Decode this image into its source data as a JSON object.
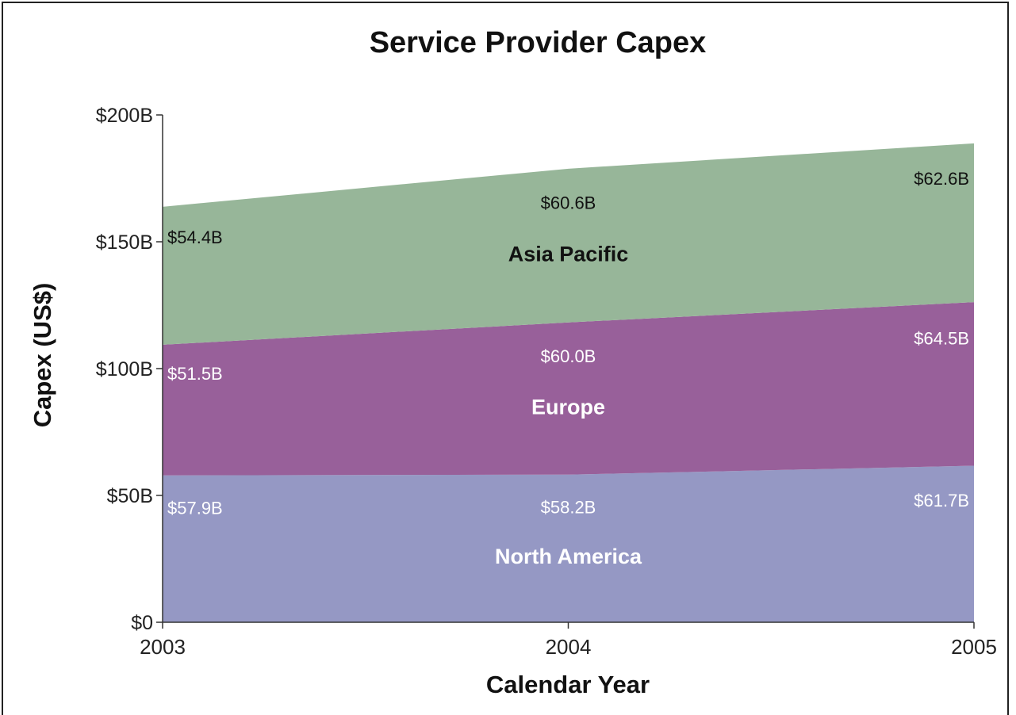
{
  "chart_data": {
    "type": "area",
    "stacked": true,
    "title": "Service Provider Capex",
    "xlabel": "Calendar Year",
    "ylabel": "Capex (US$)",
    "x": [
      "2003",
      "2004",
      "2005"
    ],
    "ylim": [
      0,
      200
    ],
    "y_ticks": [
      "$0",
      "$50B",
      "$100B",
      "$150B",
      "$200B"
    ],
    "legend": "none",
    "grid": false,
    "series": [
      {
        "name": "North America",
        "values": [
          57.9,
          58.2,
          61.7
        ],
        "labels": [
          "$57.9B",
          "$58.2B",
          "$61.7B"
        ],
        "color": "#9598c4",
        "text_color": "#ffffff"
      },
      {
        "name": "Europe",
        "values": [
          51.5,
          60.0,
          64.5
        ],
        "labels": [
          "$51.5B",
          "$60.0B",
          "$64.5B"
        ],
        "color": "#98609a",
        "text_color": "#ffffff"
      },
      {
        "name": "Asia Pacific",
        "values": [
          54.4,
          60.6,
          62.6
        ],
        "labels": [
          "$54.4B",
          "$60.6B",
          "$62.6B"
        ],
        "color": "#97b699",
        "text_color": "#111111"
      }
    ]
  }
}
